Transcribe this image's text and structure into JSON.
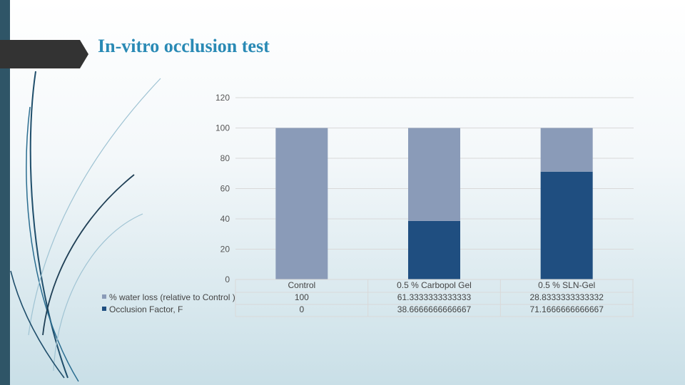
{
  "slide": {
    "title": "In-vitro occlusion test"
  },
  "colors": {
    "occlusion": "#1f4e80",
    "water_loss": "#8a9bb8",
    "title": "#2a8ab5",
    "left_bar": "#2f5567"
  },
  "chart_data": {
    "type": "bar",
    "stacked": true,
    "categories": [
      "Control",
      "0.5 % Carbopol Gel",
      "0.5 % SLN-Gel"
    ],
    "series": [
      {
        "name": "% water loss (relative to Control )",
        "values": [
          100,
          61.3333333333333,
          28.8333333333332
        ],
        "value_labels": [
          "100",
          "61.3333333333333",
          "28.8333333333332"
        ],
        "color": "#8a9bb8"
      },
      {
        "name": "Occlusion Factor, F",
        "values": [
          0,
          38.6666666666667,
          71.1666666666667
        ],
        "value_labels": [
          "0",
          "38.6666666666667",
          "71.1666666666667"
        ],
        "color": "#1f4e80"
      }
    ],
    "ylim": [
      0,
      120
    ],
    "yticks": [
      "0",
      "20",
      "40",
      "60",
      "80",
      "100",
      "120"
    ],
    "grid": true,
    "data_table": true,
    "legend": "data table rows"
  }
}
